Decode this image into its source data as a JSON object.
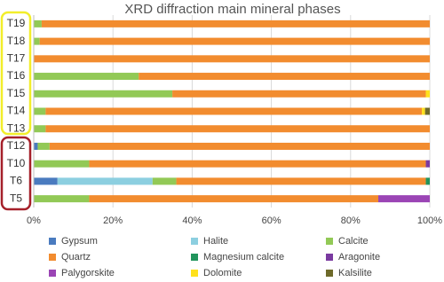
{
  "chart_data": {
    "type": "stacked_bar_horizontal",
    "title": "XRD diffraction main mineral phases",
    "categories": [
      "T19",
      "T18",
      "T17",
      "T16",
      "T15",
      "T14",
      "T13",
      "T12",
      "T10",
      "T6",
      "T5"
    ],
    "series": [
      {
        "name": "Gypsum",
        "color": "#4a7bbf",
        "values": [
          0,
          0,
          0,
          0,
          0,
          0,
          0,
          1,
          0,
          6,
          0
        ]
      },
      {
        "name": "Halite",
        "color": "#8ccfe0",
        "values": [
          0,
          0,
          0,
          0,
          0,
          0,
          0,
          0,
          0,
          24,
          0
        ]
      },
      {
        "name": "Calcite",
        "color": "#92c956",
        "values": [
          2,
          1.5,
          0,
          26.5,
          35,
          3,
          3,
          3,
          14,
          6,
          14
        ]
      },
      {
        "name": "Quartz",
        "color": "#f28c2f",
        "values": [
          98,
          98.5,
          100,
          73.5,
          64,
          95,
          97,
          96,
          85,
          63,
          73
        ]
      },
      {
        "name": "Magnesium calcite",
        "color": "#21945c",
        "values": [
          0,
          0,
          0,
          0,
          0,
          0,
          0,
          0,
          0,
          1,
          0
        ]
      },
      {
        "name": "Aragonite",
        "color": "#7a3aa0",
        "values": [
          0,
          0,
          0,
          0,
          0,
          0,
          0,
          0,
          1,
          0,
          0
        ]
      },
      {
        "name": "Palygorskite",
        "color": "#9b45b5",
        "values": [
          0,
          0,
          0,
          0,
          0,
          0,
          0,
          0,
          0,
          0,
          13
        ]
      },
      {
        "name": "Dolomite",
        "color": "#ffe11c",
        "values": [
          0,
          0,
          0,
          0,
          1,
          0.8,
          0,
          0,
          0,
          0,
          0
        ]
      },
      {
        "name": "Kalsilite",
        "color": "#6e6a2a",
        "values": [
          0,
          0,
          0,
          0,
          0,
          1.2,
          0,
          0,
          0,
          0,
          0
        ]
      }
    ],
    "xlim": [
      0,
      100
    ],
    "xticks": [
      {
        "value": 0,
        "label": "0%"
      },
      {
        "value": 20,
        "label": "20%"
      },
      {
        "value": 40,
        "label": "40%"
      },
      {
        "value": 60,
        "label": "60%"
      },
      {
        "value": 80,
        "label": "80%"
      },
      {
        "value": 100,
        "label": "100%"
      }
    ],
    "grid": true
  }
}
